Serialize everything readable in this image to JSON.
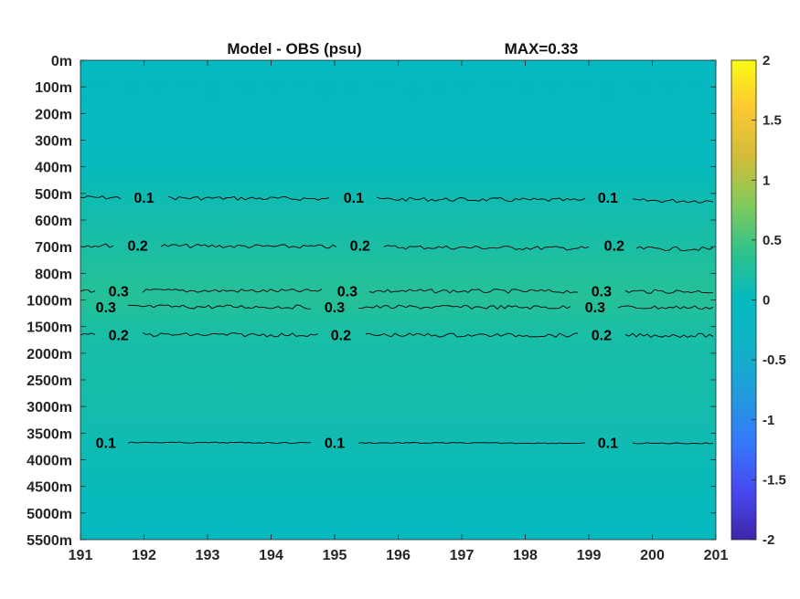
{
  "chart_data": {
    "type": "heatmap",
    "title": "Model - OBS (psu)",
    "max_label": "MAX=0.33",
    "xlabel": "",
    "ylabel": "",
    "x_ticks": [
      "191",
      "192",
      "193",
      "194",
      "195",
      "196",
      "197",
      "198",
      "199",
      "200",
      "201"
    ],
    "xlim": [
      191,
      201
    ],
    "y_ticks": [
      "0m",
      "100m",
      "200m",
      "300m",
      "400m",
      "500m",
      "600m",
      "700m",
      "800m",
      "1000m",
      "1500m",
      "2000m",
      "2500m",
      "3000m",
      "3500m",
      "4000m",
      "4500m",
      "5000m",
      "5500m"
    ],
    "y_scale": "piecewise (0-800m at 100m steps, 800-1000m, then 500m steps to 5500m)",
    "colorbar": {
      "range": [
        -2,
        2
      ],
      "ticks": [
        "2",
        "1.5",
        "1",
        "0.5",
        "0",
        "-0.5",
        "-1",
        "-1.5",
        "-2"
      ],
      "colormap": "parula"
    },
    "depth_profile": [
      {
        "depth": "0m",
        "value": -0.05
      },
      {
        "depth": "100m",
        "value": -0.07
      },
      {
        "depth": "200m",
        "value": -0.02
      },
      {
        "depth": "300m",
        "value": -0.01
      },
      {
        "depth": "400m",
        "value": 0.02
      },
      {
        "depth": "500m",
        "value": 0.09
      },
      {
        "depth": "600m",
        "value": 0.15
      },
      {
        "depth": "700m",
        "value": 0.21
      },
      {
        "depth": "800m",
        "value": 0.27
      },
      {
        "depth": "1000m",
        "value": 0.31
      },
      {
        "depth": "1500m",
        "value": 0.21
      },
      {
        "depth": "2000m",
        "value": 0.17
      },
      {
        "depth": "2500m",
        "value": 0.16
      },
      {
        "depth": "3000m",
        "value": 0.15
      },
      {
        "depth": "3500m",
        "value": 0.11
      },
      {
        "depth": "4000m",
        "value": 0.07
      },
      {
        "depth": "4500m",
        "value": 0.04
      },
      {
        "depth": "5000m",
        "value": 0.01
      },
      {
        "depth": "5500m",
        "value": -0.02
      }
    ],
    "contours": [
      {
        "level": "0.1",
        "depth_index": 5.15,
        "labels_at": [
          192,
          195.3,
          199.3
        ]
      },
      {
        "level": "0.2",
        "depth_index": 6.95,
        "labels_at": [
          191.9,
          195.4,
          199.4
        ]
      },
      {
        "level": "0.3",
        "depth_index": 8.65,
        "labels_at": [
          191.6,
          195.2,
          199.2
        ]
      },
      {
        "level": "0.3",
        "depth_index": 9.25,
        "labels_at": [
          191.4,
          195.0,
          199.1
        ]
      },
      {
        "level": "0.2",
        "depth_index": 10.3,
        "labels_at": [
          191.6,
          195.1,
          199.2
        ]
      },
      {
        "level": "0.1",
        "depth_index": 14.35,
        "labels_at": [
          191.4,
          195.0,
          199.3
        ]
      }
    ],
    "colors": {
      "background_mid": "#12bfae",
      "surface": "#05b8c2",
      "core": "#3cc68a"
    }
  }
}
